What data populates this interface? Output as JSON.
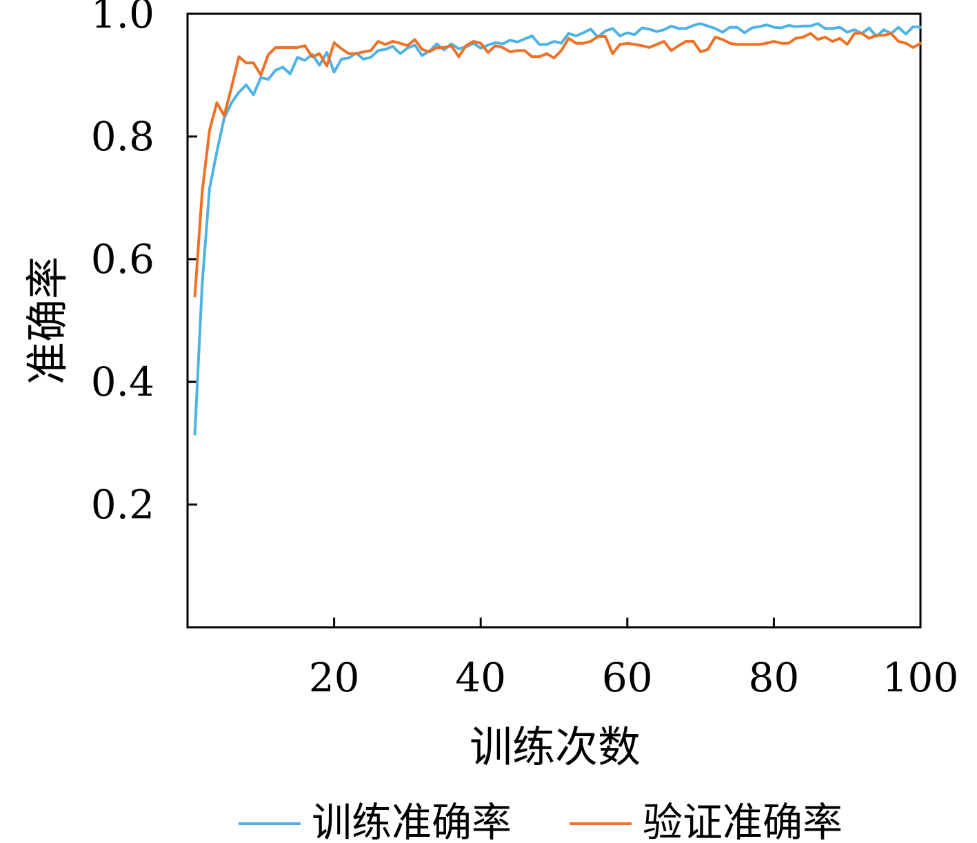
{
  "chart_data": {
    "type": "line",
    "title": "",
    "xlabel": "训练次数",
    "ylabel": "准确率",
    "xlim": [
      0,
      100
    ],
    "ylim": [
      0,
      1.0
    ],
    "xticks": [
      20,
      40,
      60,
      80,
      100
    ],
    "xtick_labels": [
      "20",
      "40",
      "60",
      "80",
      "100"
    ],
    "yticks": [
      0.2,
      0.4,
      0.6,
      0.8,
      1.0
    ],
    "ytick_labels": [
      "0.2",
      "0.4",
      "0.6",
      "0.8",
      "1.0"
    ],
    "grid": false,
    "legend_position": "bottom",
    "x": [
      1,
      2,
      3,
      4,
      5,
      6,
      7,
      8,
      9,
      10,
      11,
      12,
      13,
      14,
      15,
      16,
      17,
      18,
      19,
      20,
      21,
      22,
      23,
      24,
      25,
      26,
      27,
      28,
      29,
      30,
      31,
      32,
      33,
      34,
      35,
      36,
      37,
      38,
      39,
      40,
      41,
      42,
      43,
      44,
      45,
      46,
      47,
      48,
      49,
      50,
      51,
      52,
      53,
      54,
      55,
      56,
      57,
      58,
      59,
      60,
      61,
      62,
      63,
      64,
      65,
      66,
      67,
      68,
      69,
      70,
      71,
      72,
      73,
      74,
      75,
      76,
      77,
      78,
      79,
      80,
      81,
      82,
      83,
      84,
      85,
      86,
      87,
      88,
      89,
      90,
      91,
      92,
      93,
      94,
      95,
      96,
      97,
      98,
      99,
      100
    ],
    "series": [
      {
        "name": "训练准确率",
        "color": "#4db3e6",
        "values": [
          0.315,
          0.56,
          0.715,
          0.775,
          0.83,
          0.855,
          0.872,
          0.884,
          0.868,
          0.896,
          0.893,
          0.908,
          0.913,
          0.902,
          0.929,
          0.924,
          0.934,
          0.916,
          0.937,
          0.905,
          0.926,
          0.928,
          0.936,
          0.926,
          0.929,
          0.94,
          0.942,
          0.947,
          0.935,
          0.944,
          0.949,
          0.932,
          0.939,
          0.951,
          0.941,
          0.951,
          0.943,
          0.946,
          0.952,
          0.944,
          0.949,
          0.953,
          0.951,
          0.957,
          0.954,
          0.959,
          0.964,
          0.95,
          0.95,
          0.955,
          0.952,
          0.968,
          0.964,
          0.969,
          0.975,
          0.962,
          0.972,
          0.976,
          0.964,
          0.969,
          0.966,
          0.977,
          0.975,
          0.971,
          0.974,
          0.98,
          0.976,
          0.976,
          0.981,
          0.984,
          0.98,
          0.976,
          0.97,
          0.978,
          0.978,
          0.969,
          0.977,
          0.979,
          0.982,
          0.978,
          0.977,
          0.981,
          0.979,
          0.98,
          0.98,
          0.984,
          0.976,
          0.976,
          0.978,
          0.97,
          0.974,
          0.968,
          0.977,
          0.963,
          0.974,
          0.968,
          0.978,
          0.967,
          0.979,
          0.978
        ]
      },
      {
        "name": "验证准确率",
        "color": "#f07024",
        "values": [
          0.54,
          0.71,
          0.81,
          0.855,
          0.834,
          0.88,
          0.93,
          0.92,
          0.92,
          0.9,
          0.933,
          0.945,
          0.945,
          0.945,
          0.945,
          0.948,
          0.93,
          0.935,
          0.915,
          0.953,
          0.943,
          0.935,
          0.935,
          0.938,
          0.94,
          0.955,
          0.95,
          0.955,
          0.952,
          0.948,
          0.958,
          0.942,
          0.938,
          0.945,
          0.945,
          0.948,
          0.93,
          0.948,
          0.955,
          0.952,
          0.937,
          0.948,
          0.945,
          0.938,
          0.94,
          0.94,
          0.93,
          0.93,
          0.935,
          0.928,
          0.94,
          0.96,
          0.952,
          0.952,
          0.955,
          0.963,
          0.963,
          0.935,
          0.95,
          0.952,
          0.95,
          0.948,
          0.945,
          0.95,
          0.955,
          0.94,
          0.948,
          0.955,
          0.955,
          0.938,
          0.942,
          0.962,
          0.958,
          0.952,
          0.95,
          0.95,
          0.95,
          0.95,
          0.952,
          0.955,
          0.952,
          0.952,
          0.96,
          0.962,
          0.968,
          0.958,
          0.962,
          0.955,
          0.96,
          0.95,
          0.968,
          0.968,
          0.96,
          0.965,
          0.965,
          0.968,
          0.955,
          0.952,
          0.945,
          0.952
        ]
      }
    ]
  }
}
